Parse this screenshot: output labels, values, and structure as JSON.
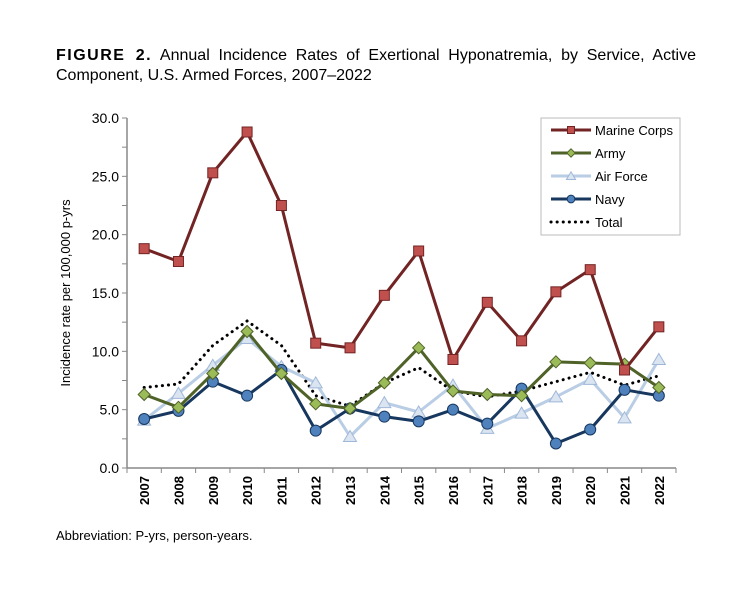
{
  "figure": {
    "label": "FIGURE 2.",
    "title": "Annual Incidence Rates of Exertional Hyponatremia, by Service, Active Component, U.S. Armed Forces, 2007–2022"
  },
  "footnote": "Abbreviation: P-yrs, person-years.",
  "chart_data": {
    "type": "line",
    "title": "",
    "xlabel": "",
    "ylabel": "Incidence rate per 100,000 p-yrs",
    "ylim": [
      0,
      30
    ],
    "yticks": [
      "0.0",
      "5.0",
      "10.0",
      "15.0",
      "20.0",
      "25.0",
      "30.0"
    ],
    "grid": false,
    "legend_position": "top-right",
    "categories": [
      "2007",
      "2008",
      "2009",
      "2010",
      "2011",
      "2012",
      "2013",
      "2014",
      "2015",
      "2016",
      "2017",
      "2018",
      "2019",
      "2020",
      "2021",
      "2022"
    ],
    "series": [
      {
        "name": "Marine Corps",
        "line_color": "#722424",
        "marker_color": "#c0504d",
        "marker": "square",
        "dash": false,
        "values": [
          18.8,
          17.7,
          25.3,
          28.8,
          22.5,
          10.7,
          10.3,
          14.8,
          18.6,
          9.3,
          14.2,
          10.9,
          15.1,
          17.0,
          8.4,
          12.1
        ]
      },
      {
        "name": "Army",
        "line_color": "#4f6228",
        "marker_color": "#9bbb59",
        "marker": "diamond",
        "dash": false,
        "values": [
          6.3,
          5.2,
          8.1,
          11.7,
          8.1,
          5.5,
          5.1,
          7.3,
          10.3,
          6.6,
          6.3,
          6.2,
          9.1,
          9.0,
          8.9,
          6.9
        ]
      },
      {
        "name": "Air Force",
        "line_color": "#b9cde5",
        "marker_color": "#dbe5f1",
        "marker": "triangle",
        "dash": false,
        "values": [
          4.1,
          6.4,
          8.8,
          11.1,
          8.7,
          7.3,
          2.7,
          5.6,
          4.8,
          7.1,
          3.4,
          4.7,
          6.1,
          7.6,
          4.3,
          9.3
        ]
      },
      {
        "name": "Navy",
        "line_color": "#17375e",
        "marker_color": "#4f81bd",
        "marker": "circle",
        "dash": false,
        "values": [
          4.2,
          4.9,
          7.4,
          6.2,
          8.4,
          3.2,
          5.1,
          4.4,
          4.0,
          5.0,
          3.8,
          6.8,
          2.1,
          3.3,
          6.7,
          6.2
        ]
      },
      {
        "name": "Total",
        "line_color": "#000000",
        "marker_color": "",
        "marker": "none",
        "dash": true,
        "values": [
          6.9,
          7.2,
          10.5,
          12.6,
          10.5,
          6.2,
          5.3,
          7.3,
          8.6,
          6.6,
          6.1,
          6.6,
          7.4,
          8.2,
          7.1,
          7.9
        ]
      }
    ]
  }
}
